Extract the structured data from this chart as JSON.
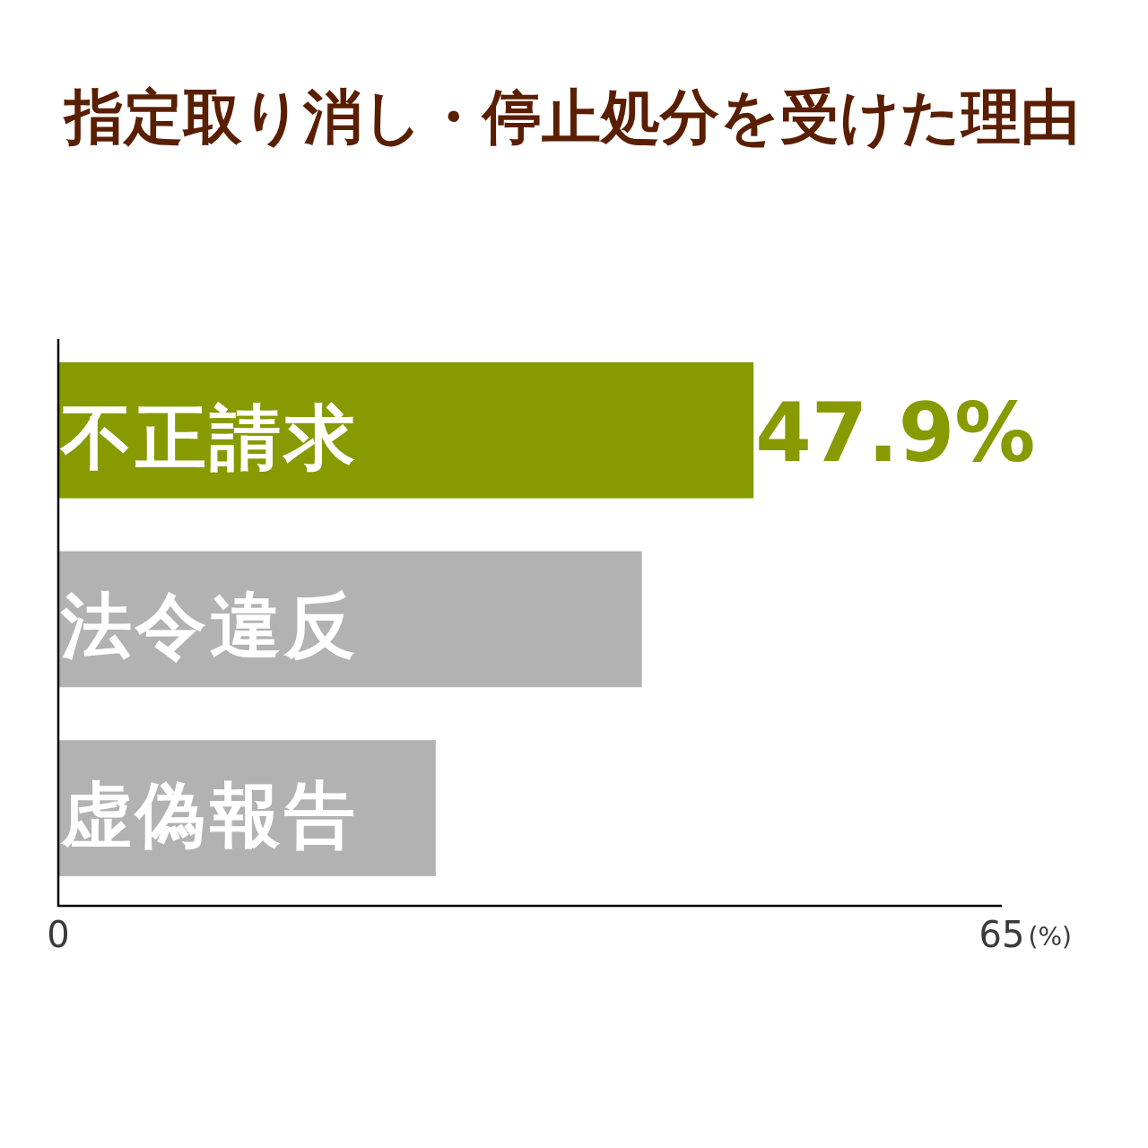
{
  "chart_data": {
    "type": "bar",
    "orientation": "horizontal",
    "title": "指定取り消し・停止処分を受けた理由",
    "categories": [
      "不正請求",
      "法令違反",
      "虚偽報告"
    ],
    "values": [
      47.9,
      40.2,
      26.0
    ],
    "colors": [
      "#879a00",
      "#b2b2b2",
      "#b2b2b2"
    ],
    "value_labels": [
      "47.9%",
      null,
      null
    ],
    "xlim": [
      0,
      65
    ],
    "xticks": [
      0,
      65
    ],
    "xlabel": "(%)",
    "grid": false
  }
}
